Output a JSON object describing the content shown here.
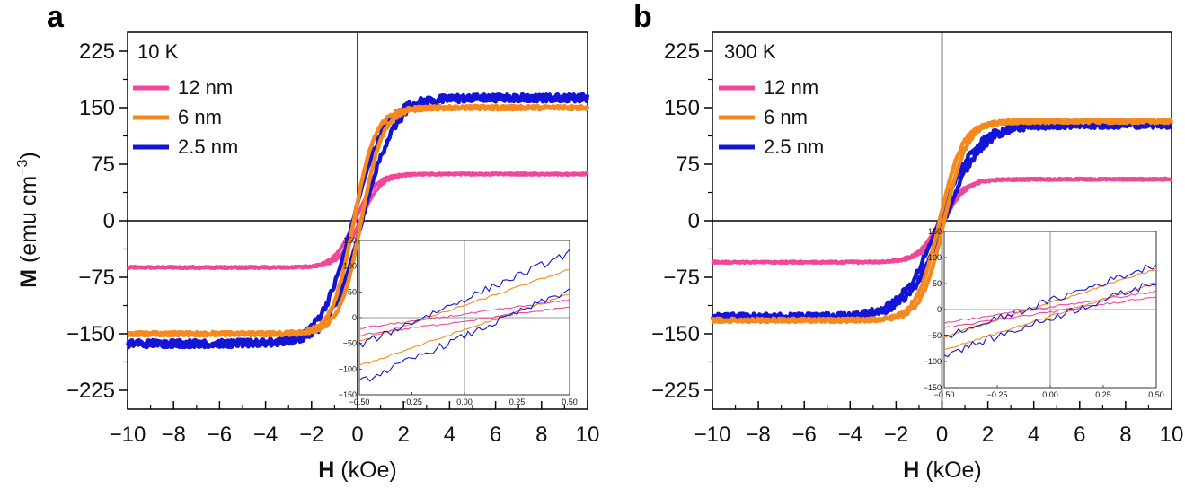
{
  "figure": {
    "ylabel_bold": "M",
    "ylabel_rest": " (emu cm",
    "ylabel_sup": "−3",
    "ylabel_close": ")",
    "xlabel_bold": "H",
    "xlabel_rest": " (kOe)"
  },
  "chart_data": [
    {
      "type": "line",
      "panel": "a",
      "temperature": "10 K",
      "xlabel": "H (kOe)",
      "ylabel": "M (emu cm−3)",
      "xlim": [
        -10,
        10
      ],
      "ylim": [
        -250,
        250
      ],
      "xticks": [
        "−10",
        "−8",
        "−6",
        "−4",
        "−2",
        "0",
        "2",
        "4",
        "6",
        "8",
        "10"
      ],
      "yticks": [
        "225",
        "150",
        "75",
        "0",
        "−75",
        "−150",
        "−225"
      ],
      "legend": [
        "12 nm",
        "6 nm",
        "2.5 nm"
      ],
      "series": [
        {
          "name": "12 nm",
          "color": "#f0479a",
          "Ms": 62,
          "Hc": 0.12,
          "w": 0.9
        },
        {
          "name": "6 nm",
          "color": "#f5891e",
          "Ms": 150,
          "Hc": 0.16,
          "w": 0.95
        },
        {
          "name": "2.5 nm",
          "color": "#1414d6",
          "Ms": 163,
          "Hc": 0.2,
          "w": 1.4
        }
      ],
      "inset": {
        "xlim": [
          -0.5,
          0.5
        ],
        "ylim": [
          -150,
          150
        ],
        "xticks": [
          "−0.50",
          "−0.25",
          "0.00",
          "0.25",
          "0.50"
        ],
        "yticks": [
          "150",
          "100",
          "50",
          "0",
          "−50",
          "−100",
          "−150"
        ]
      }
    },
    {
      "type": "line",
      "panel": "b",
      "temperature": "300 K",
      "xlabel": "H (kOe)",
      "ylabel": "M (emu cm−3)",
      "xlim": [
        -10,
        10
      ],
      "ylim": [
        -250,
        250
      ],
      "xticks": [
        "−10",
        "−8",
        "−6",
        "−4",
        "−2",
        "0",
        "2",
        "4",
        "6",
        "8",
        "10"
      ],
      "yticks": [
        "225",
        "150",
        "75",
        "0",
        "−75",
        "−150",
        "−225"
      ],
      "legend": [
        "12 nm",
        "6 nm",
        "2.5 nm"
      ],
      "series": [
        {
          "name": "12 nm",
          "color": "#f0479a",
          "Ms": 55,
          "Hc": 0.08,
          "w": 1.0
        },
        {
          "name": "6 nm",
          "color": "#f5891e",
          "Ms": 132,
          "Hc": 0.1,
          "w": 1.0
        },
        {
          "name": "2.5 nm",
          "color": "#1414d6",
          "Ms": 128,
          "Hc": 0.12,
          "w": 1.6
        }
      ],
      "inset": {
        "xlim": [
          -0.5,
          0.5
        ],
        "ylim": [
          -150,
          150
        ],
        "xticks": [
          "−0.50",
          "−0.25",
          "0.00",
          "0.25",
          "0.50"
        ],
        "yticks": [
          "150",
          "100",
          "50",
          "0",
          "−50",
          "−100",
          "−150"
        ]
      }
    }
  ]
}
